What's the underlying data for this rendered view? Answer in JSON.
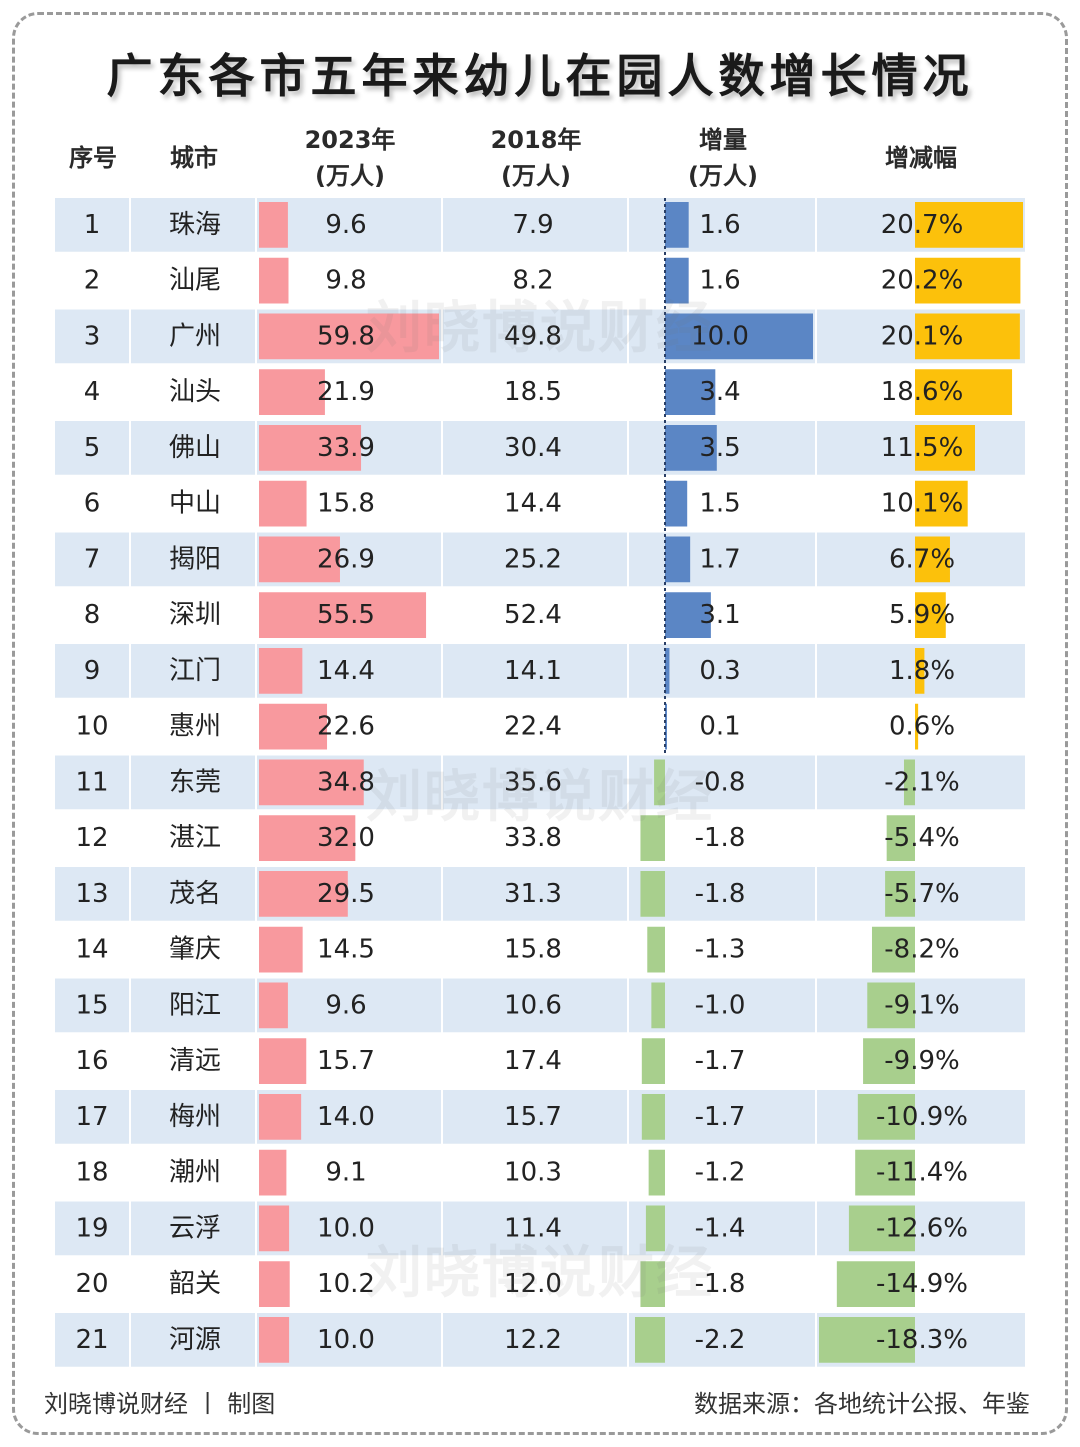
{
  "title": "广东各市五年来幼儿在园人数增长情况",
  "headers": {
    "index": "序号",
    "city": "城市",
    "y2023": "2023年",
    "y2023_unit": "(万人)",
    "y2018": "2018年",
    "y2018_unit": "(万人)",
    "delta": "增量",
    "delta_unit": "(万人)",
    "pct": "增减幅"
  },
  "watermark": "刘晓博说财经",
  "footer": {
    "left": "刘晓博说财经 丨 制图",
    "right": "数据来源：各地统计公报、年鉴"
  },
  "colors": {
    "band": "#dde8f4",
    "bar_2023": "#f8999e",
    "delta_pos": "#5b86c5",
    "delta_neg": "#a8cf8d",
    "pct_pos": "#fcc10b",
    "pct_neg": "#a8cf8d"
  },
  "chart_data": {
    "type": "table",
    "columns": [
      "序号",
      "城市",
      "2023年(万人)",
      "2018年(万人)",
      "增量(万人)",
      "增减幅"
    ],
    "rows": [
      {
        "index": "1",
        "city": "珠海",
        "v2023": 9.6,
        "v2018": 7.9,
        "delta": 1.6,
        "pct": 20.7,
        "v2023_text": "9.6",
        "v2018_text": "7.9",
        "delta_text": "1.6",
        "pct_text": "20.7%"
      },
      {
        "index": "2",
        "city": "汕尾",
        "v2023": 9.8,
        "v2018": 8.2,
        "delta": 1.6,
        "pct": 20.2,
        "v2023_text": "9.8",
        "v2018_text": "8.2",
        "delta_text": "1.6",
        "pct_text": "20.2%"
      },
      {
        "index": "3",
        "city": "广州",
        "v2023": 59.8,
        "v2018": 49.8,
        "delta": 10.0,
        "pct": 20.1,
        "v2023_text": "59.8",
        "v2018_text": "49.8",
        "delta_text": "10.0",
        "pct_text": "20.1%"
      },
      {
        "index": "4",
        "city": "汕头",
        "v2023": 21.9,
        "v2018": 18.5,
        "delta": 3.4,
        "pct": 18.6,
        "v2023_text": "21.9",
        "v2018_text": "18.5",
        "delta_text": "3.4",
        "pct_text": "18.6%"
      },
      {
        "index": "5",
        "city": "佛山",
        "v2023": 33.9,
        "v2018": 30.4,
        "delta": 3.5,
        "pct": 11.5,
        "v2023_text": "33.9",
        "v2018_text": "30.4",
        "delta_text": "3.5",
        "pct_text": "11.5%"
      },
      {
        "index": "6",
        "city": "中山",
        "v2023": 15.8,
        "v2018": 14.4,
        "delta": 1.5,
        "pct": 10.1,
        "v2023_text": "15.8",
        "v2018_text": "14.4",
        "delta_text": "1.5",
        "pct_text": "10.1%"
      },
      {
        "index": "7",
        "city": "揭阳",
        "v2023": 26.9,
        "v2018": 25.2,
        "delta": 1.7,
        "pct": 6.7,
        "v2023_text": "26.9",
        "v2018_text": "25.2",
        "delta_text": "1.7",
        "pct_text": "6.7%"
      },
      {
        "index": "8",
        "city": "深圳",
        "v2023": 55.5,
        "v2018": 52.4,
        "delta": 3.1,
        "pct": 5.9,
        "v2023_text": "55.5",
        "v2018_text": "52.4",
        "delta_text": "3.1",
        "pct_text": "5.9%"
      },
      {
        "index": "9",
        "city": "江门",
        "v2023": 14.4,
        "v2018": 14.1,
        "delta": 0.3,
        "pct": 1.8,
        "v2023_text": "14.4",
        "v2018_text": "14.1",
        "delta_text": "0.3",
        "pct_text": "1.8%"
      },
      {
        "index": "10",
        "city": "惠州",
        "v2023": 22.6,
        "v2018": 22.4,
        "delta": 0.1,
        "pct": 0.6,
        "v2023_text": "22.6",
        "v2018_text": "22.4",
        "delta_text": "0.1",
        "pct_text": "0.6%"
      },
      {
        "index": "11",
        "city": "东莞",
        "v2023": 34.8,
        "v2018": 35.6,
        "delta": -0.8,
        "pct": -2.1,
        "v2023_text": "34.8",
        "v2018_text": "35.6",
        "delta_text": "-0.8",
        "pct_text": "-2.1%"
      },
      {
        "index": "12",
        "city": "湛江",
        "v2023": 32.0,
        "v2018": 33.8,
        "delta": -1.8,
        "pct": -5.4,
        "v2023_text": "32.0",
        "v2018_text": "33.8",
        "delta_text": "-1.8",
        "pct_text": "-5.4%"
      },
      {
        "index": "13",
        "city": "茂名",
        "v2023": 29.5,
        "v2018": 31.3,
        "delta": -1.8,
        "pct": -5.7,
        "v2023_text": "29.5",
        "v2018_text": "31.3",
        "delta_text": "-1.8",
        "pct_text": "-5.7%"
      },
      {
        "index": "14",
        "city": "肇庆",
        "v2023": 14.5,
        "v2018": 15.8,
        "delta": -1.3,
        "pct": -8.2,
        "v2023_text": "14.5",
        "v2018_text": "15.8",
        "delta_text": "-1.3",
        "pct_text": "-8.2%"
      },
      {
        "index": "15",
        "city": "阳江",
        "v2023": 9.6,
        "v2018": 10.6,
        "delta": -1.0,
        "pct": -9.1,
        "v2023_text": "9.6",
        "v2018_text": "10.6",
        "delta_text": "-1.0",
        "pct_text": "-9.1%"
      },
      {
        "index": "16",
        "city": "清远",
        "v2023": 15.7,
        "v2018": 17.4,
        "delta": -1.7,
        "pct": -9.9,
        "v2023_text": "15.7",
        "v2018_text": "17.4",
        "delta_text": "-1.7",
        "pct_text": "-9.9%"
      },
      {
        "index": "17",
        "city": "梅州",
        "v2023": 14.0,
        "v2018": 15.7,
        "delta": -1.7,
        "pct": -10.9,
        "v2023_text": "14.0",
        "v2018_text": "15.7",
        "delta_text": "-1.7",
        "pct_text": "-10.9%"
      },
      {
        "index": "18",
        "city": "潮州",
        "v2023": 9.1,
        "v2018": 10.3,
        "delta": -1.2,
        "pct": -11.4,
        "v2023_text": "9.1",
        "v2018_text": "10.3",
        "delta_text": "-1.2",
        "pct_text": "-11.4%"
      },
      {
        "index": "19",
        "city": "云浮",
        "v2023": 10.0,
        "v2018": 11.4,
        "delta": -1.4,
        "pct": -12.6,
        "v2023_text": "10.0",
        "v2018_text": "11.4",
        "delta_text": "-1.4",
        "pct_text": "-12.6%"
      },
      {
        "index": "20",
        "city": "韶关",
        "v2023": 10.2,
        "v2018": 12.0,
        "delta": -1.8,
        "pct": -14.9,
        "v2023_text": "10.2",
        "v2018_text": "12.0",
        "delta_text": "-1.8",
        "pct_text": "-14.9%"
      },
      {
        "index": "21",
        "city": "河源",
        "v2023": 10.0,
        "v2018": 12.2,
        "delta": -2.2,
        "pct": -18.3,
        "v2023_text": "10.0",
        "v2018_text": "12.2",
        "delta_text": "-2.2",
        "pct_text": "-18.3%"
      }
    ]
  }
}
